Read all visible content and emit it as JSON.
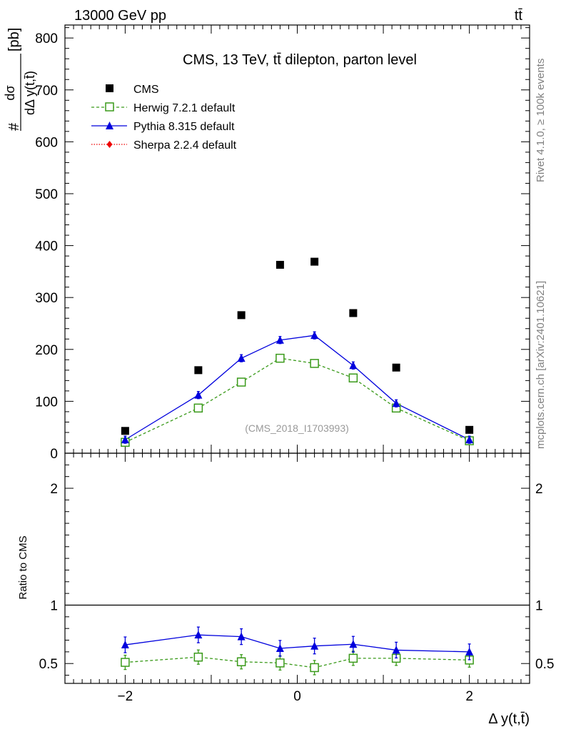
{
  "header": {
    "left": "13000 GeV pp",
    "right": "tt̄"
  },
  "side": {
    "rivet": "Rivet 4.1.0, ≥ 100k events",
    "mcplots": "mcplots.cern.ch [arXiv:2401.10621]"
  },
  "colors": {
    "cms": "#000000",
    "herwig": "#3a9a1a",
    "pythia": "#0000dd",
    "sherpa": "#ee0000"
  },
  "chart_data": {
    "type": "scatter",
    "title": "CMS, 13 TeV, tt̄ dilepton, parton level",
    "watermark": "(CMS_2018_I1703993)",
    "xlabel": "Δ y(t,t̄)",
    "ylabel": "dσ/dΔ y(t,t̄) [pb]",
    "ylabel_parts": {
      "hash": "#",
      "num": "dσ",
      "den": "dΔ y(t,t̄)",
      "unit": "[pb]"
    },
    "ratio_ylabel": "Ratio to CMS",
    "xlim": [
      -2.7,
      2.7
    ],
    "ylim": [
      0,
      825
    ],
    "ratio_ylim": [
      0.33,
      2.3
    ],
    "x_ticks": [
      -2,
      0,
      2
    ],
    "x_tick_labels": [
      "−2",
      "0",
      "2"
    ],
    "y_ticks": [
      0,
      100,
      200,
      300,
      400,
      500,
      600,
      700,
      800
    ],
    "y_tick_labels": [
      "0",
      "100",
      "200",
      "300",
      "400",
      "500",
      "600",
      "700",
      "800"
    ],
    "ratio_ticks": [
      0.5,
      1,
      2
    ],
    "ratio_tick_labels": [
      "0.5",
      "1",
      "2"
    ],
    "x": [
      -2.0,
      -1.15,
      -0.65,
      -0.2,
      0.2,
      0.65,
      1.15,
      2.0
    ],
    "series": [
      {
        "name": "CMS",
        "marker": "filled-square",
        "values": [
          43,
          160,
          266,
          363,
          369,
          270,
          165,
          45
        ]
      },
      {
        "name": "Herwig 7.2.1 default",
        "marker": "open-square",
        "line": "dashed",
        "values": [
          21,
          87,
          137,
          183,
          173,
          145,
          87,
          24
        ],
        "ratio": [
          0.51,
          0.555,
          0.515,
          0.505,
          0.465,
          0.545,
          0.545,
          0.53
        ]
      },
      {
        "name": "Pythia 8.315 default",
        "marker": "filled-triangle",
        "line": "solid",
        "values": [
          26,
          112,
          183,
          218,
          227,
          169,
          96,
          26
        ],
        "ratio": [
          0.66,
          0.745,
          0.73,
          0.63,
          0.65,
          0.665,
          0.615,
          0.6
        ]
      },
      {
        "name": "Sherpa 2.2.4 default",
        "marker": "filled-diamond",
        "line": "dotted",
        "values": []
      }
    ],
    "legend_position": "top-left"
  }
}
